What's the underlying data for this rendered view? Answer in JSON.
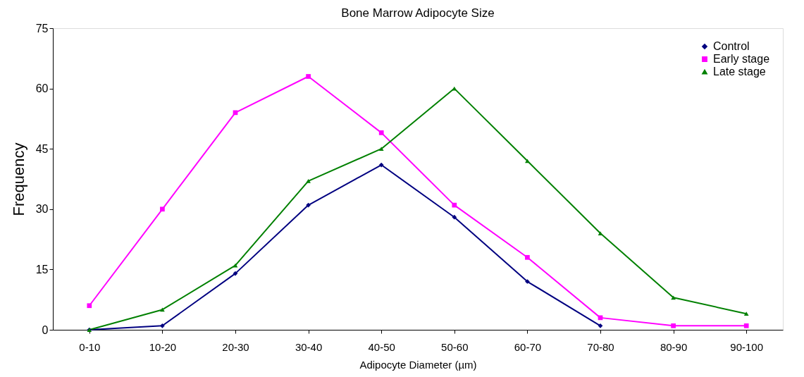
{
  "chart_data": {
    "type": "line",
    "title": "Bone Marrow Adipocyte Size",
    "xlabel": "Adipocyte Diameter  (µm)",
    "ylabel": "Frequency",
    "categories": [
      "0-10",
      "10-20",
      "20-30",
      "30-40",
      "40-50",
      "50-60",
      "60-70",
      "70-80",
      "80-90",
      "90-100"
    ],
    "series": [
      {
        "name": "Control",
        "color": "#000080",
        "marker": "diamond",
        "values": [
          0,
          1,
          14,
          31,
          41,
          28,
          12,
          1,
          null,
          null
        ]
      },
      {
        "name": "Early stage",
        "color": "#ff00ff",
        "marker": "square",
        "values": [
          6,
          30,
          54,
          63,
          49,
          31,
          18,
          3,
          1,
          1
        ]
      },
      {
        "name": "Late stage",
        "color": "#008000",
        "marker": "triangle",
        "values": [
          0,
          5,
          16,
          37,
          45,
          60,
          42,
          24,
          8,
          4
        ]
      }
    ],
    "ylim": [
      0,
      75
    ],
    "yticks": [
      0,
      15,
      30,
      45,
      60,
      75
    ],
    "grid": false,
    "legend": "top right"
  }
}
